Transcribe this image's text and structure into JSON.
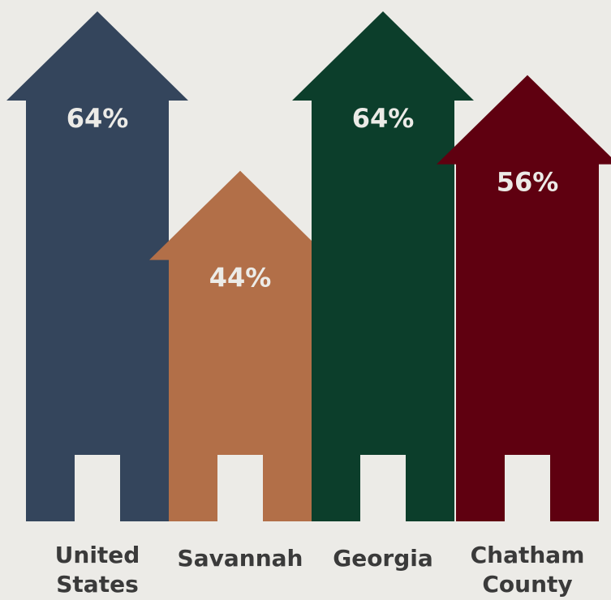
{
  "chart_data": {
    "type": "bar",
    "categories": [
      "United States",
      "Savannah",
      "Georgia",
      "Chatham County"
    ],
    "category_lines": [
      [
        "United",
        "States"
      ],
      [
        "Savannah"
      ],
      [
        "Georgia"
      ],
      [
        "Chatham",
        "County"
      ]
    ],
    "values": [
      64,
      44,
      64,
      56
    ],
    "value_labels": [
      "64%",
      "44%",
      "64%",
      "56%"
    ],
    "unit": "%",
    "colors": [
      "#34455c",
      "#b26f48",
      "#0c3e2b",
      "#5f0010"
    ],
    "background": "#ecebe7",
    "door_color": "#ecebe7",
    "label_color": "#3a3a3a",
    "title": "",
    "xlabel": "",
    "ylabel": "",
    "grid": false,
    "legend": "none"
  }
}
